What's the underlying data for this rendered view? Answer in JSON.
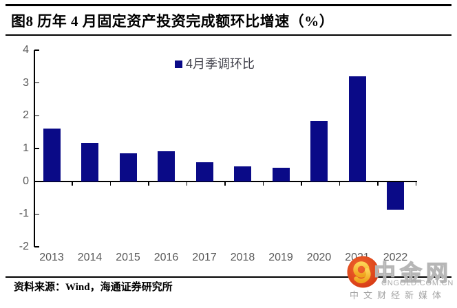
{
  "title": "图8  历年 4 月固定资产投资完成额环比增速（%）",
  "source": "资料来源：Wind，海通证券研究所",
  "watermark": {
    "name": "中金网",
    "url": "CNGOLD.COM.CN",
    "tagline": "中文财经新媒体",
    "logo_icon": "cngold-swirl-logo"
  },
  "colors": {
    "bar": "#0a0a87",
    "axis": "#000000",
    "axis_text": "#595959",
    "legend_text": "#40404a",
    "logo_red_outer": "#d53713",
    "logo_red_inner": "#f0662e",
    "logo_gold": "#f7bb33",
    "watermark_gray": "#b6b6b6"
  },
  "chart_data": {
    "type": "bar",
    "series_name": "4月季调环比",
    "categories": [
      "2013",
      "2014",
      "2015",
      "2016",
      "2017",
      "2018",
      "2019",
      "2020",
      "2021",
      "2022"
    ],
    "values": [
      1.6,
      1.17,
      0.86,
      0.92,
      0.58,
      0.46,
      0.42,
      1.83,
      3.2,
      -0.85
    ],
    "title": "图8 历年4月固定资产投资完成额环比增速（%）",
    "xlabel": "",
    "ylabel": "",
    "ylim": [
      -2,
      4
    ],
    "yticks": [
      4,
      3,
      2,
      1,
      0,
      -1,
      -2
    ],
    "grid": false,
    "legend_position": "top-center"
  }
}
